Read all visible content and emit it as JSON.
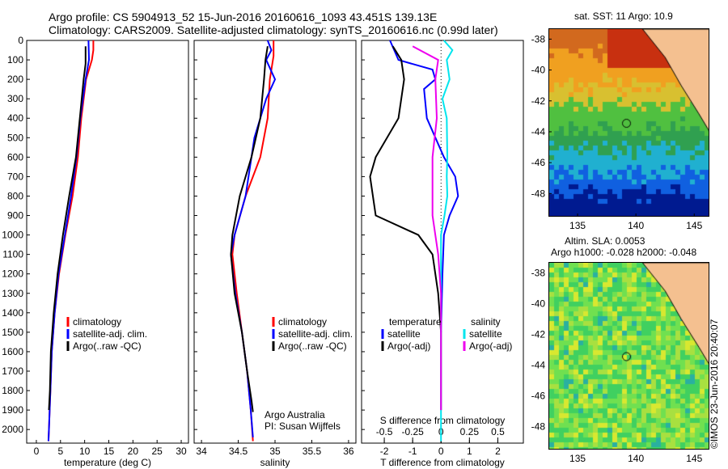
{
  "header": {
    "title_line1": "Argo profile: CS 5904913_52 15-Jun-2016 20160616_1093 43.451S 139.13E",
    "title_line2": "Climatology: CARS2009. Satellite-adjusted climatology: synTS_20160616.nc (0.99d later)"
  },
  "credit": "©IMOS 23-Jun-2016 20:40:07",
  "colors": {
    "clim": "#ff0000",
    "sat": "#0000ff",
    "argo": "#000000",
    "sat_s": "#00e5ee",
    "argo_s": "#ee00ee"
  },
  "chart_data": [
    {
      "type": "line",
      "id": "temperature",
      "xlabel": "temperature (deg C)",
      "ylabel": "",
      "xlim": [
        -2,
        31.5
      ],
      "ylim": [
        2070,
        0
      ],
      "xticks": [
        "0",
        "5",
        "10",
        "15",
        "20",
        "25",
        "30"
      ],
      "yticks": [
        "0",
        "100",
        "200",
        "300",
        "400",
        "500",
        "600",
        "700",
        "800",
        "900",
        "1000",
        "1100",
        "1200",
        "1300",
        "1400",
        "1500",
        "1600",
        "1700",
        "1800",
        "1900",
        "2000"
      ],
      "legend": [
        "climatology",
        "satellite-adj. clim.",
        "Argo(..raw -QC)"
      ],
      "legend_position": "middle-center",
      "series": [
        {
          "name": "climatology",
          "points": [
            [
              11.8,
              0
            ],
            [
              11.8,
              50
            ],
            [
              11.5,
              100
            ],
            [
              10.3,
              200
            ],
            [
              9.3,
              400
            ],
            [
              8.6,
              600
            ],
            [
              7.5,
              800
            ],
            [
              6.0,
              1000
            ],
            [
              4.7,
              1200
            ],
            [
              3.8,
              1400
            ],
            [
              3.2,
              1600
            ],
            [
              2.9,
              1800
            ],
            [
              2.6,
              2000
            ],
            [
              2.5,
              2060
            ]
          ]
        },
        {
          "name": "satellite-adj. clim.",
          "points": [
            [
              10.8,
              0
            ],
            [
              10.9,
              100
            ],
            [
              10.2,
              200
            ],
            [
              9.1,
              400
            ],
            [
              8.3,
              600
            ],
            [
              7.2,
              800
            ],
            [
              5.9,
              1000
            ],
            [
              4.6,
              1200
            ],
            [
              3.8,
              1400
            ],
            [
              3.2,
              1600
            ],
            [
              2.9,
              1800
            ],
            [
              2.6,
              2000
            ],
            [
              2.5,
              2060
            ]
          ]
        },
        {
          "name": "Argo(..raw -QC)",
          "points": [
            [
              10.2,
              30
            ],
            [
              10.2,
              120
            ],
            [
              9.8,
              200
            ],
            [
              9.0,
              400
            ],
            [
              8.2,
              600
            ],
            [
              6.8,
              800
            ],
            [
              5.5,
              1000
            ],
            [
              4.4,
              1200
            ],
            [
              3.6,
              1400
            ],
            [
              3.0,
              1600
            ],
            [
              2.8,
              1800
            ],
            [
              2.6,
              1900
            ]
          ]
        }
      ]
    },
    {
      "type": "line",
      "id": "salinity",
      "xlabel": "salinity",
      "ylabel": "",
      "xlim": [
        33.9,
        36.1
      ],
      "ylim": [
        2070,
        0
      ],
      "xticks": [
        "34",
        "34.5",
        "35",
        "35.5",
        "36"
      ],
      "legend": [
        "climatology",
        "satellite-adj. clim.",
        "Argo(..raw -QC)"
      ],
      "legend_position": "middle-right",
      "annotation": [
        "Argo Australia",
        "PI: Susan Wijffels"
      ],
      "series": [
        {
          "name": "climatology",
          "points": [
            [
              34.98,
              0
            ],
            [
              34.98,
              80
            ],
            [
              34.93,
              200
            ],
            [
              34.9,
              400
            ],
            [
              34.8,
              600
            ],
            [
              34.6,
              800
            ],
            [
              34.45,
              1000
            ],
            [
              34.42,
              1100
            ],
            [
              34.48,
              1300
            ],
            [
              34.55,
              1500
            ],
            [
              34.62,
              1700
            ],
            [
              34.67,
              1900
            ],
            [
              34.7,
              2060
            ]
          ]
        },
        {
          "name": "satellite-adj. clim.",
          "points": [
            [
              34.9,
              0
            ],
            [
              34.95,
              50
            ],
            [
              34.88,
              100
            ],
            [
              35.0,
              200
            ],
            [
              34.88,
              300
            ],
            [
              34.72,
              500
            ],
            [
              34.6,
              800
            ],
            [
              34.45,
              1000
            ],
            [
              34.4,
              1100
            ],
            [
              34.46,
              1300
            ],
            [
              34.55,
              1500
            ],
            [
              34.62,
              1700
            ],
            [
              34.67,
              1900
            ],
            [
              34.7,
              2040
            ]
          ]
        },
        {
          "name": "Argo(..raw -QC)",
          "points": [
            [
              34.9,
              30
            ],
            [
              34.87,
              100
            ],
            [
              34.85,
              200
            ],
            [
              34.8,
              400
            ],
            [
              34.68,
              600
            ],
            [
              34.52,
              800
            ],
            [
              34.42,
              1000
            ],
            [
              34.4,
              1100
            ],
            [
              34.45,
              1300
            ],
            [
              34.55,
              1500
            ],
            [
              34.62,
              1700
            ],
            [
              34.68,
              1850
            ],
            [
              34.7,
              1910
            ]
          ]
        }
      ]
    },
    {
      "type": "line",
      "id": "difference",
      "xlabel": "T difference from climatology",
      "xlabel_top": "S difference from climatology",
      "xlim": [
        -2.8,
        2.9
      ],
      "ylim": [
        2070,
        0
      ],
      "xticks": [
        "-2",
        "-1",
        "0",
        "1",
        "2"
      ],
      "xticks_s": [
        "-0.5",
        "-0.25",
        "0",
        "0.25",
        "0.5"
      ],
      "legend_temperature": [
        "temperature",
        "satellite",
        "Argo(-adj)"
      ],
      "legend_salinity": [
        "salinity",
        "satellite",
        "Argo(-adj)"
      ],
      "series": [
        {
          "name": "satellite",
          "group": "temperature",
          "points": [
            [
              -1.8,
              0
            ],
            [
              -1.5,
              100
            ],
            [
              -0.3,
              150
            ],
            [
              -0.2,
              200
            ],
            [
              -0.6,
              250
            ],
            [
              -0.5,
              400
            ],
            [
              0.1,
              600
            ],
            [
              0.5,
              700
            ],
            [
              0.6,
              800
            ],
            [
              0.3,
              900
            ],
            [
              0.1,
              1000
            ],
            [
              0.05,
              1200
            ],
            [
              0.0,
              1500
            ]
          ]
        },
        {
          "name": "Argo(-adj)",
          "group": "temperature",
          "points": [
            [
              -1.7,
              30
            ],
            [
              -1.4,
              100
            ],
            [
              -1.3,
              200
            ],
            [
              -1.5,
              400
            ],
            [
              -2.3,
              600
            ],
            [
              -2.5,
              700
            ],
            [
              -2.4,
              800
            ],
            [
              -2.3,
              900
            ],
            [
              -0.8,
              1000
            ],
            [
              -0.3,
              1100
            ],
            [
              -0.1,
              1300
            ],
            [
              0.0,
              1500
            ],
            [
              0.0,
              1700
            ],
            [
              0.0,
              1900
            ]
          ]
        },
        {
          "name": "satellite",
          "group": "salinity",
          "points": [
            [
              0.1,
              0
            ],
            [
              0.4,
              50
            ],
            [
              0.2,
              100
            ],
            [
              0.3,
              200
            ],
            [
              0.05,
              300
            ],
            [
              0.2,
              400
            ],
            [
              0.22,
              600
            ],
            [
              0.2,
              700
            ],
            [
              0.22,
              800
            ],
            [
              0.12,
              900
            ],
            [
              0.0,
              1000
            ],
            [
              0.0,
              1300
            ],
            [
              0.0,
              1600
            ],
            [
              0.0,
              2060
            ]
          ]
        },
        {
          "name": "Argo(-adj)",
          "group": "salinity",
          "points": [
            [
              -1.0,
              30
            ],
            [
              -0.1,
              100
            ],
            [
              -0.2,
              200
            ],
            [
              -0.15,
              400
            ],
            [
              -0.3,
              600
            ],
            [
              -0.3,
              800
            ],
            [
              -0.3,
              900
            ],
            [
              -0.2,
              1000
            ],
            [
              -0.1,
              1100
            ],
            [
              0.0,
              1300
            ],
            [
              0.0,
              1600
            ],
            [
              0.0,
              1900
            ]
          ]
        }
      ]
    },
    {
      "type": "heatmap",
      "id": "sst_map",
      "title": "sat. SST: 11  Argo: 10.9",
      "xlim": [
        132.5,
        146.3
      ],
      "ylim": [
        -49.5,
        -37.3
      ],
      "xticks": [
        "135",
        "140",
        "145"
      ],
      "yticks": [
        "-38",
        "-40",
        "-42",
        "-44",
        "-46",
        "-48"
      ],
      "argo_position": [
        139.13,
        -43.45
      ]
    },
    {
      "type": "heatmap",
      "id": "sla_map",
      "title_line1": "Altim. SLA: 0.0053",
      "title_line2": "Argo h1000: -0.028  h2000: -0.048",
      "xlim": [
        132.5,
        146.3
      ],
      "ylim": [
        -49.5,
        -37.3
      ],
      "xticks": [
        "135",
        "140",
        "145"
      ],
      "yticks": [
        "-38",
        "-40",
        "-42",
        "-44",
        "-46",
        "-48"
      ],
      "argo_position": [
        139.13,
        -43.45
      ]
    }
  ]
}
